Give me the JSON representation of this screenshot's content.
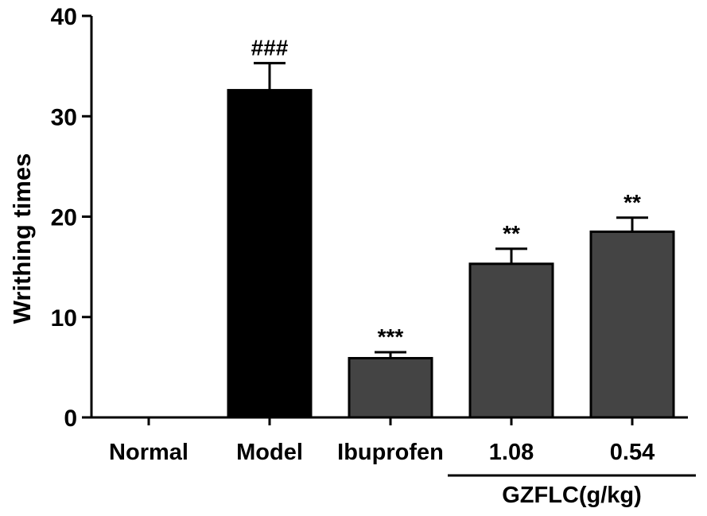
{
  "chart_data": {
    "type": "bar",
    "title": "",
    "xlabel": "",
    "ylabel": "Writhing times",
    "ylim": [
      0,
      40
    ],
    "yticks": [
      0,
      10,
      20,
      30,
      40
    ],
    "grid": false,
    "categories": [
      "Normal",
      "Model",
      "Ibuprofen",
      "1.08",
      "0.54"
    ],
    "values": [
      0,
      32.6,
      5.9,
      15.3,
      18.5
    ],
    "errors": [
      0,
      2.7,
      0.6,
      1.5,
      1.4
    ],
    "significance": [
      "",
      "###",
      "***",
      "**",
      "**"
    ],
    "bar_colors": [
      "#000000",
      "#000000",
      "#444444",
      "#444444",
      "#444444"
    ],
    "group_label": "GZFLC(g/kg)",
    "group_categories": [
      "1.08",
      "0.54"
    ]
  }
}
